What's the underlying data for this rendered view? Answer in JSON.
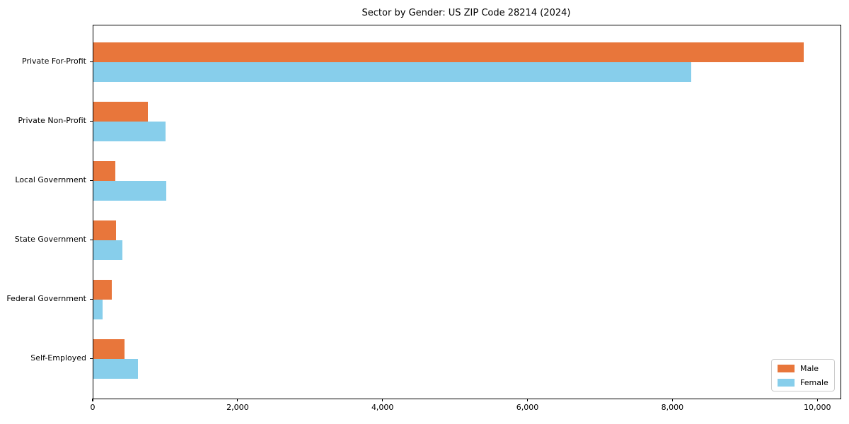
{
  "title": "Sector by Gender: US ZIP Code 28214 (2024)",
  "chart_data": {
    "type": "bar",
    "orientation": "horizontal",
    "title": "Sector by Gender: US ZIP Code 28214 (2024)",
    "categories": [
      "Private For-Profit",
      "Private Non-Profit",
      "Local Government",
      "State Government",
      "Federal Government",
      "Self-Employed"
    ],
    "series": [
      {
        "name": "Male",
        "color": "#E8763B",
        "values": [
          9800,
          750,
          300,
          310,
          250,
          430
        ]
      },
      {
        "name": "Female",
        "color": "#87CEEB",
        "values": [
          8250,
          1000,
          1010,
          400,
          125,
          615
        ]
      }
    ],
    "x_axis": {
      "ticks": [
        0,
        2000,
        4000,
        6000,
        8000,
        10000
      ],
      "tick_labels": [
        "0",
        "2,000",
        "4,000",
        "6,000",
        "8,000",
        "10,000"
      ],
      "min": 0,
      "max": 10310
    },
    "y_axis": {
      "label": ""
    },
    "xlabel": "",
    "ylabel": "",
    "grid": false,
    "legend": {
      "position": "lower right"
    }
  }
}
